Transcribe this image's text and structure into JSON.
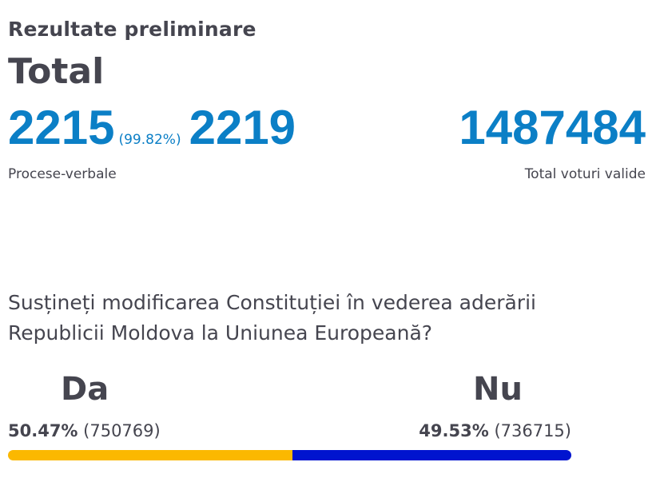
{
  "header": {
    "subtitle": "Rezultate preliminare",
    "title": "Total"
  },
  "stats": {
    "processed": "2215",
    "processed_pct": "(99.82%)",
    "total_reports": "2219",
    "reports_label": "Procese-verbale",
    "valid_votes": "1487484",
    "valid_votes_label": "Total voturi valide"
  },
  "question": "Susțineți modificarea Constituției în vederea aderării Republicii Moldova la Uniunea Europeană?",
  "options": {
    "da": {
      "label": "Da",
      "percent": "50.47%",
      "votes": "(750769)",
      "share": 50.47,
      "color": "#fbb800"
    },
    "nu": {
      "label": "Nu",
      "percent": "49.53%",
      "votes": "(736715)",
      "share": 49.53,
      "color": "#0014cf"
    }
  },
  "colors": {
    "accent": "#0b7fc6",
    "text": "#45454f"
  }
}
